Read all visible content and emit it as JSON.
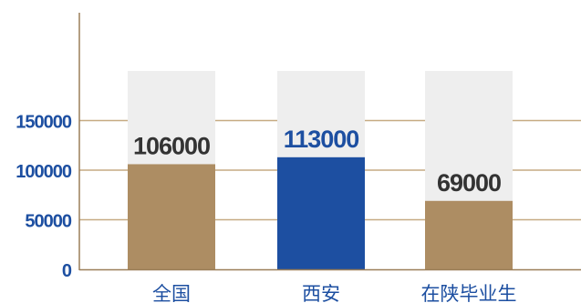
{
  "chart_data": {
    "type": "bar",
    "categories": [
      "全国",
      "西安",
      "在陕毕业生"
    ],
    "values": [
      106000,
      113000,
      69000
    ],
    "highlight_index": 1,
    "yticks": [
      0,
      50000,
      100000,
      150000
    ],
    "ylim": [
      0,
      200000
    ],
    "grid": true,
    "legend": "none",
    "colors": {
      "bar_default": "#ad8d63",
      "bar_highlight": "#1d4fa1",
      "bar_background": "#eeeeee",
      "gridline": "#c6aa82",
      "axis": "#9b7e58",
      "tick_label": "#1d4fa1",
      "category_label": "#1d4fa1",
      "data_label_default": "#333333",
      "data_label_highlight": "#1d4fa1"
    }
  }
}
